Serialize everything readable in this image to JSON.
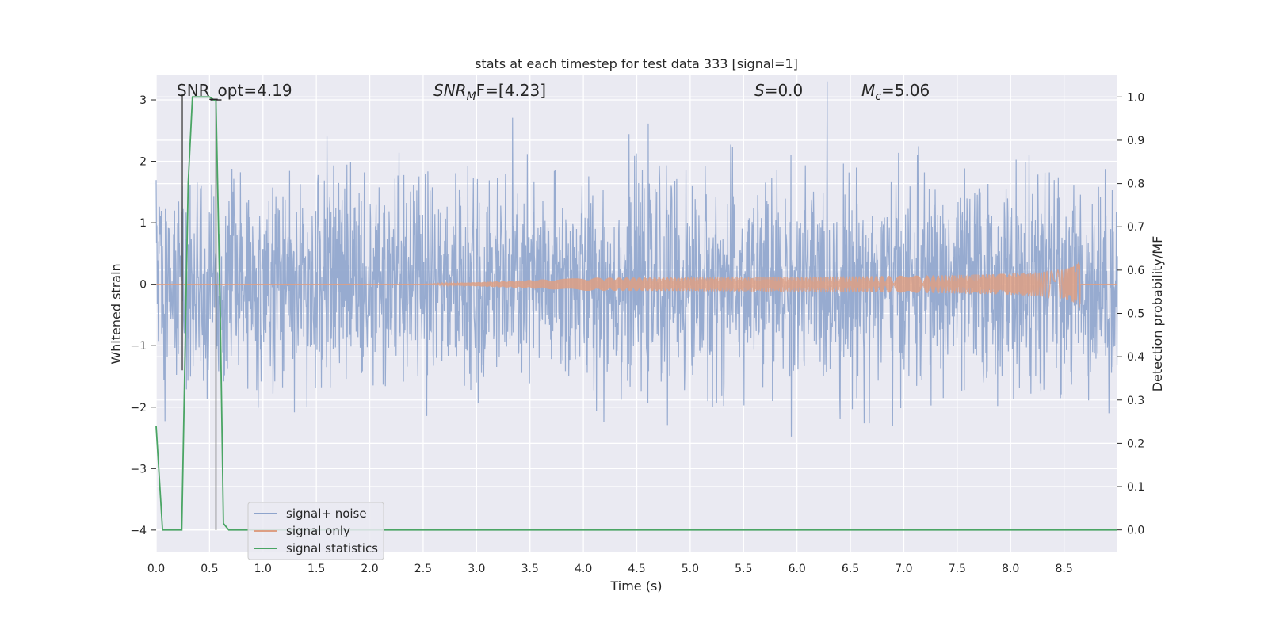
{
  "chart_data": {
    "type": "line",
    "title": "stats at each timestep for test data 333 [signal=1]",
    "xlabel": "Time (s)",
    "ylabel": "Whitened strain",
    "y2label": "Detection probability/MF",
    "xlim": [
      0.0,
      9.0
    ],
    "ylim": [
      -4.35,
      3.4
    ],
    "y2lim": [
      -0.05,
      1.05
    ],
    "xticks": [
      "0.0",
      "0.5",
      "1.0",
      "1.5",
      "2.0",
      "2.5",
      "3.0",
      "3.5",
      "4.0",
      "4.5",
      "5.0",
      "5.5",
      "6.0",
      "6.5",
      "7.0",
      "7.5",
      "8.0",
      "8.5"
    ],
    "yticks": [
      "3",
      "2",
      "1",
      "0",
      "−1",
      "−2",
      "−3",
      "−4"
    ],
    "y2ticks": [
      "1.0",
      "0.9",
      "0.8",
      "0.7",
      "0.6",
      "0.5",
      "0.4",
      "0.3",
      "0.2",
      "0.1",
      "0.0"
    ],
    "grid": true,
    "legend_position": "lower-left",
    "annotations": {
      "snr_opt": "SNR_opt=4.19",
      "snr_mf_sym": "SNR",
      "snr_mf_sub": "M",
      "snr_mf_rest": "F=[4.23]",
      "s_sym": "S",
      "s_rest": "=0.0",
      "mc_sym": "M",
      "mc_sub": "c",
      "mc_rest": "=5.06"
    },
    "series": [
      {
        "name": "signal+ noise",
        "color": "#8ea4cc",
        "axis": "left",
        "description_kind": "noise",
        "envelope_std": 0.82
      },
      {
        "name": "signal only",
        "color": "#dd9f84",
        "axis": "left",
        "chirp": {
          "start": 2.5,
          "peak_time": 8.65,
          "peak_amplitude": 0.42,
          "end": 9.0
        }
      },
      {
        "name": "signal statistics",
        "color": "#4aa564",
        "axis": "right",
        "x": [
          0.0,
          0.06,
          0.1,
          0.24,
          0.3,
          0.34,
          0.5,
          0.56,
          0.6,
          0.63,
          0.68,
          1.0,
          2.0,
          3.0,
          4.0,
          5.0,
          6.0,
          7.0,
          8.0,
          9.0
        ],
        "values": [
          0.24,
          0.0,
          0.0,
          0.0,
          0.8,
          1.0,
          1.0,
          0.99,
          0.5,
          0.015,
          0.0,
          0.0,
          0.0,
          0.0,
          0.0,
          0.0,
          0.0,
          0.0,
          0.0,
          0.0
        ]
      }
    ],
    "markers": [
      {
        "name": "signal start marker",
        "x": 0.245,
        "y_top": 3.1,
        "y_bottom": -1.4
      },
      {
        "name": "signal end marker",
        "x": 0.56,
        "y_top": 3.0,
        "y_bottom": -4.0
      }
    ]
  }
}
